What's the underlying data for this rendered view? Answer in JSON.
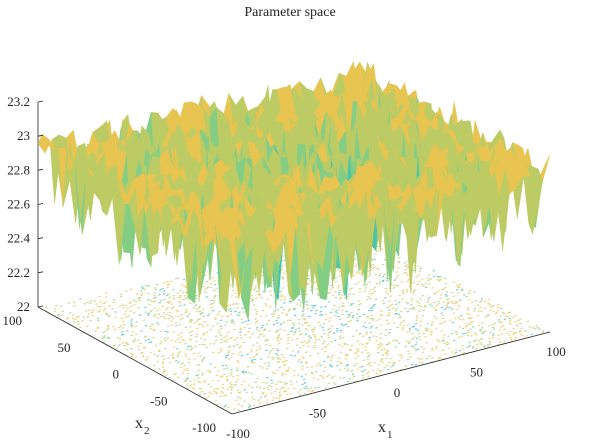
{
  "chart_data": {
    "type": "surface3d",
    "title": "Parameter space",
    "xlabel": {
      "main": "x",
      "sub": "1"
    },
    "ylabel": {
      "main": "x",
      "sub": "2"
    },
    "zlabel": "",
    "xlim": [
      -100,
      100
    ],
    "ylim": [
      -100,
      100
    ],
    "zlim": [
      22,
      23.2
    ],
    "x_ticks": [
      -100,
      -50,
      0,
      50,
      100
    ],
    "y_ticks": [
      -100,
      -50,
      0,
      50,
      100
    ],
    "z_ticks": [
      "22",
      "22.2",
      "22.4",
      "22.6",
      "22.8",
      "23",
      "23.2"
    ],
    "z_tick_values": [
      22,
      22.2,
      22.4,
      22.6,
      22.8,
      23,
      23.2
    ],
    "colormap": [
      "#3d9fe0",
      "#2fb8c8",
      "#4cc4a8",
      "#84cd85",
      "#bccb64",
      "#e8c450",
      "#f7d74a"
    ],
    "contour_projection": true,
    "grid": false
  }
}
